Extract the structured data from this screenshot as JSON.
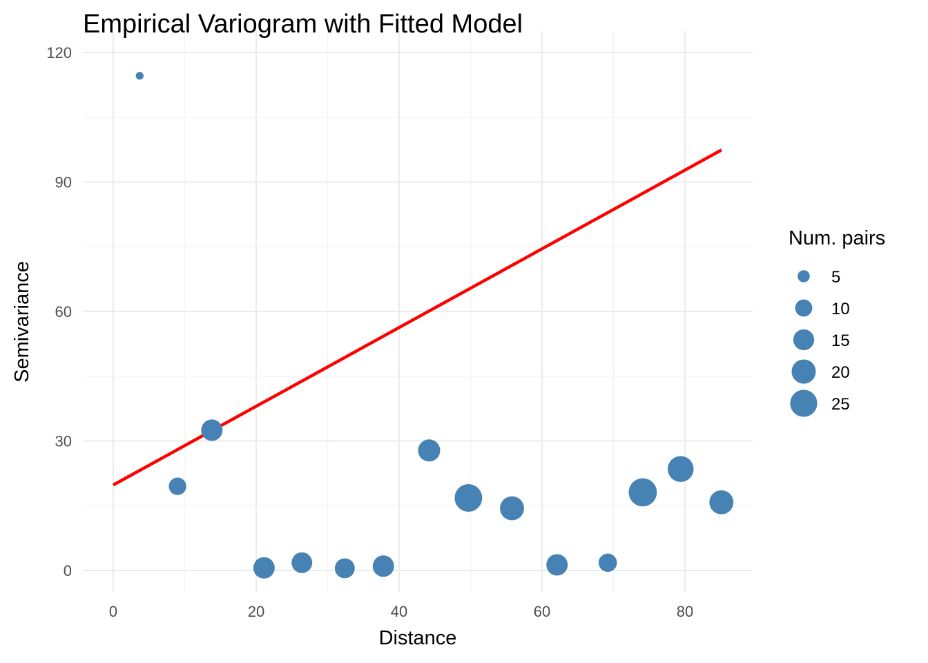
{
  "chart_data": {
    "type": "scatter",
    "title": "Empirical Variogram with Fitted Model",
    "xlabel": "Distance",
    "ylabel": "Semivariance",
    "xlim": [
      -4,
      89.5
    ],
    "ylim": [
      -5,
      121
    ],
    "x_ticks": [
      0,
      20,
      40,
      60,
      80
    ],
    "y_ticks": [
      0,
      30,
      60,
      90,
      120
    ],
    "grid": true,
    "point_color": "#4682B4",
    "line_color": "#FF0000",
    "points": [
      {
        "x": 3.7,
        "y": 114.6,
        "np": 2
      },
      {
        "x": 9.0,
        "y": 19.5,
        "np": 10
      },
      {
        "x": 13.8,
        "y": 32.5,
        "np": 15
      },
      {
        "x": 21.1,
        "y": 0.6,
        "np": 15
      },
      {
        "x": 26.4,
        "y": 1.8,
        "np": 14
      },
      {
        "x": 32.4,
        "y": 0.5,
        "np": 13
      },
      {
        "x": 37.8,
        "y": 1.0,
        "np": 15
      },
      {
        "x": 44.2,
        "y": 27.8,
        "np": 16
      },
      {
        "x": 49.7,
        "y": 16.8,
        "np": 25
      },
      {
        "x": 55.8,
        "y": 14.4,
        "np": 19
      },
      {
        "x": 62.1,
        "y": 1.3,
        "np": 15
      },
      {
        "x": 69.2,
        "y": 1.8,
        "np": 11
      },
      {
        "x": 74.1,
        "y": 18.1,
        "np": 26
      },
      {
        "x": 79.4,
        "y": 23.5,
        "np": 22
      },
      {
        "x": 85.1,
        "y": 15.8,
        "np": 19
      }
    ],
    "fitted_line": {
      "model": "linear",
      "x": [
        0,
        85.1
      ],
      "y": [
        19.8,
        97.4
      ]
    },
    "legend": {
      "title": "Num. pairs",
      "position": "right",
      "entries": [
        5,
        10,
        15,
        20,
        25
      ],
      "labels": [
        "5",
        "10",
        "15",
        "20",
        "25"
      ]
    }
  }
}
